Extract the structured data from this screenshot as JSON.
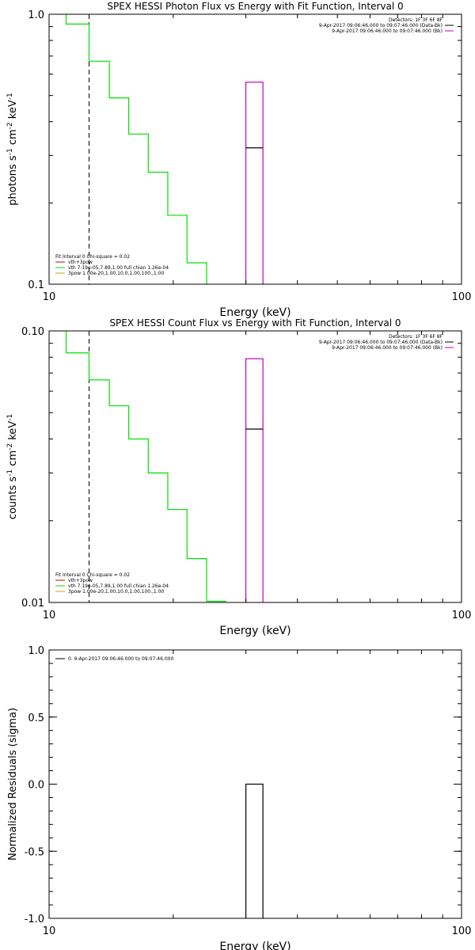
{
  "chart_data": [
    {
      "type": "line",
      "title": "SPEX HESSI Photon Flux vs Energy with Fit Function, Interval 0",
      "xlabel": "Energy (keV)",
      "ylabel": "photons s$^{-1}$ cm$^{-2}$ keV$^{-1}$",
      "xscale": "log",
      "yscale": "log",
      "xlim": [
        10,
        100
      ],
      "ylim": [
        0.1,
        1.0
      ],
      "x_tick_labels": [
        "10",
        "100"
      ],
      "y_tick_labels": [
        "0.1",
        "1.0"
      ],
      "dashed_line_x": 12.5,
      "series": [
        {
          "name": "vth+3pow",
          "color": "#00e000",
          "steps": [
            {
              "x0": 10.0,
              "x1": 11.0,
              "y": 1.2
            },
            {
              "x0": 11.0,
              "x1": 12.5,
              "y": 0.92
            },
            {
              "x0": 12.5,
              "x1": 14.0,
              "y": 0.67
            },
            {
              "x0": 14.0,
              "x1": 15.6,
              "y": 0.49
            },
            {
              "x0": 15.6,
              "x1": 17.4,
              "y": 0.36
            },
            {
              "x0": 17.4,
              "x1": 19.4,
              "y": 0.26
            },
            {
              "x0": 19.4,
              "x1": 21.6,
              "y": 0.18
            },
            {
              "x0": 21.6,
              "x1": 24.1,
              "y": 0.12
            },
            {
              "x0": 24.1,
              "x1": 26.9,
              "y": 0.09
            }
          ]
        }
      ],
      "data_box": {
        "x0": 30.0,
        "x1": 33.0,
        "y_low": 0.07,
        "y_high": 0.56,
        "y_mid": 0.32,
        "color": "#c000c0",
        "mid_color": "#000000"
      },
      "legend_right": [
        {
          "text": "Detectors: 1F 3F 6F 8F",
          "color": ""
        },
        {
          "text": "9-Apr-2017 09:06:46.000 to 09:07:46.000 (Data-Bk)",
          "color": "#000000"
        },
        {
          "text": "9-Apr-2017 09:06:46.000 to 09:07:46.000 (Bk)",
          "color": "#c000c0"
        }
      ],
      "legend_left": [
        {
          "text": "Fit Interval 0   Chi-square = 0.02",
          "color": ""
        },
        {
          "text": "vth+3pow",
          "color": "#c00000"
        },
        {
          "text": "vth 7.19e-05,7.89,1.00  full chian 1.26e-04",
          "color": "#00e000"
        },
        {
          "text": "3pow 1.00e-20,1.00,10.0,1.00,100.,1.00",
          "color": "#d0a000"
        }
      ]
    },
    {
      "type": "line",
      "title": "SPEX HESSI Count Flux vs Energy with Fit Function, Interval 0",
      "xlabel": "Energy (keV)",
      "ylabel": "counts s$^{-1}$ cm$^{-2}$ keV$^{-1}$",
      "xscale": "log",
      "yscale": "log",
      "xlim": [
        10,
        100
      ],
      "ylim": [
        0.01,
        0.1
      ],
      "x_tick_labels": [
        "10",
        "100"
      ],
      "y_tick_labels": [
        "0.01",
        "0.10"
      ],
      "dashed_line_x": 12.5,
      "series": [
        {
          "name": "vth+3pow",
          "color": "#00e000",
          "steps": [
            {
              "x0": 10.0,
              "x1": 11.0,
              "y": 0.12
            },
            {
              "x0": 11.0,
              "x1": 12.5,
              "y": 0.083
            },
            {
              "x0": 12.5,
              "x1": 14.0,
              "y": 0.066
            },
            {
              "x0": 14.0,
              "x1": 15.6,
              "y": 0.053
            },
            {
              "x0": 15.6,
              "x1": 17.4,
              "y": 0.04
            },
            {
              "x0": 17.4,
              "x1": 19.4,
              "y": 0.03
            },
            {
              "x0": 19.4,
              "x1": 21.6,
              "y": 0.022
            },
            {
              "x0": 21.6,
              "x1": 24.1,
              "y": 0.0145
            },
            {
              "x0": 24.1,
              "x1": 26.9,
              "y": 0.0101
            }
          ]
        }
      ],
      "data_box": {
        "x0": 30.0,
        "x1": 33.0,
        "y_low": 0.008,
        "y_high": 0.079,
        "y_mid": 0.0435,
        "color": "#c000c0",
        "mid_color": "#000000"
      },
      "legend_right": [
        {
          "text": "Detectors: 1F 3F 6F 8F",
          "color": ""
        },
        {
          "text": "9-Apr-2017 09:06:46.000 to 09:07:46.000 (Data-Bk)",
          "color": "#000000"
        },
        {
          "text": "9-Apr-2017 09:06:46.000 to 09:07:46.000 (Bk)",
          "color": "#c000c0"
        }
      ],
      "legend_left": [
        {
          "text": "Fit Interval 0   Chi-square = 0.02",
          "color": ""
        },
        {
          "text": "vth+3pow",
          "color": "#c00000"
        },
        {
          "text": "vth 7.19e-05,7.89,1.00  full chian 1.26e-04",
          "color": "#00e000"
        },
        {
          "text": "3pow 1.00e-20,1.00,10.0,1.00,100.,1.00",
          "color": "#d0a000"
        }
      ]
    },
    {
      "type": "line",
      "title": "",
      "xlabel": "Energy (keV)",
      "ylabel": "Normalized Residuals (sigma)",
      "xscale": "log",
      "yscale": "linear",
      "xlim": [
        10,
        100
      ],
      "ylim": [
        -1.0,
        1.0
      ],
      "x_tick_labels": [
        "10",
        "100"
      ],
      "y_ticks": [
        -1.0,
        -0.5,
        0.0,
        0.5,
        1.0
      ],
      "y_tick_labels": [
        "-1.0",
        "-0.5",
        "0.0",
        "0.5",
        "1.0"
      ],
      "data_box": {
        "x0": 30.0,
        "x1": 33.0,
        "y_low": -1.1,
        "y_high": 0.0,
        "color": "#000000"
      },
      "legend_left": [
        {
          "text": "0. 9-Apr-2017 09:06:46.000 to 09:07:46.000",
          "color": "#000000"
        }
      ]
    }
  ]
}
